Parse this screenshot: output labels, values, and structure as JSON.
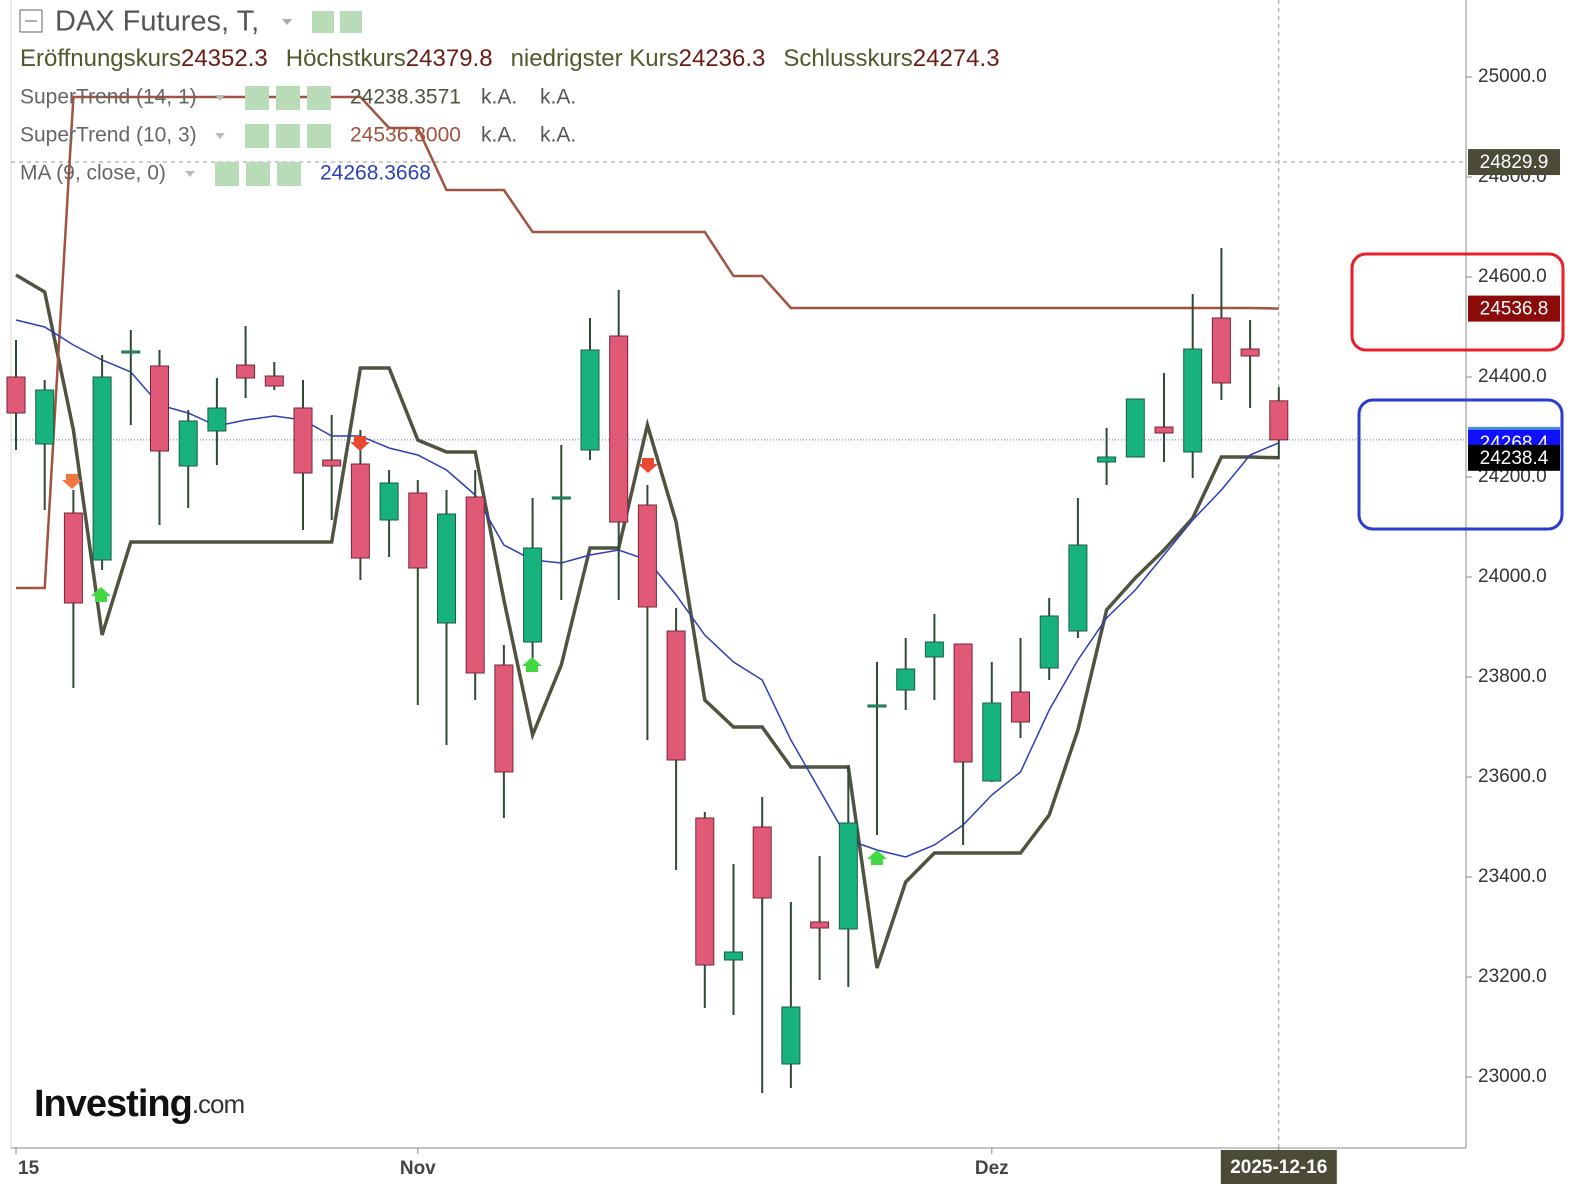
{
  "chart_data": {
    "type": "candlestick",
    "title": "DAX Futures, T,",
    "ohlc_header": [
      {
        "label": "Eröffnungskurs",
        "value": 24352.3
      },
      {
        "label": "Höchstkurs",
        "value": 24379.8
      },
      {
        "label": "niedrigster Kurs",
        "value": 24236.3
      },
      {
        "label": "Schlusskurs",
        "value": 24274.3
      }
    ],
    "categories": [
      "15",
      null,
      null,
      null,
      null,
      null,
      null,
      null,
      null,
      null,
      null,
      null,
      null,
      null,
      "Nov",
      null,
      null,
      null,
      null,
      null,
      null,
      null,
      null,
      null,
      null,
      null,
      null,
      null,
      null,
      null,
      null,
      null,
      null,
      null,
      "Dez",
      null,
      null,
      null,
      null,
      null,
      null,
      null,
      null,
      null,
      "2025-12-16"
    ],
    "open": [
      24400,
      24266,
      24128,
      24034,
      24448,
      24422,
      24222,
      24292,
      24424,
      24402,
      24338,
      24234,
      24226,
      24114,
      24168,
      23908,
      24160,
      23824,
      23870,
      24156,
      24254,
      24482,
      24144,
      23892,
      23518,
      23234,
      23500,
      23026,
      23310,
      23296,
      23740,
      23774,
      23840,
      23866,
      23592,
      23770,
      23818,
      23892,
      24230,
      24240,
      24300,
      24250,
      24518,
      24456,
      24352.3
    ],
    "high": [
      24474,
      24394,
      24174,
      24444,
      24494,
      24454,
      24334,
      24398,
      24502,
      24430,
      24394,
      24324,
      24294,
      24214,
      24194,
      24174,
      24214,
      23864,
      24158,
      24264,
      24518,
      24574,
      24184,
      23938,
      23530,
      23426,
      23560,
      23350,
      23442,
      23624,
      23830,
      23878,
      23926,
      23866,
      23830,
      23878,
      23958,
      24158,
      24298,
      24356,
      24408,
      24566,
      24658,
      24514,
      24379.8
    ],
    "low": [
      24254,
      24134,
      23778,
      24014,
      24304,
      24104,
      24138,
      24224,
      24358,
      24374,
      24094,
      24114,
      23994,
      24040,
      23744,
      23664,
      23754,
      23518,
      23834,
      23954,
      24234,
      23954,
      23674,
      23414,
      23138,
      23124,
      22968,
      22978,
      23194,
      23180,
      23484,
      23734,
      23754,
      23464,
      23590,
      23678,
      23794,
      23878,
      24184,
      24240,
      24230,
      24198,
      24354,
      24338,
      24236.3
    ],
    "close": [
      24328,
      24374,
      23948,
      24400,
      24452,
      24252,
      24312,
      24338,
      24398,
      24382,
      24208,
      24222,
      24038,
      24188,
      24018,
      24126,
      23808,
      23610,
      24058,
      24160,
      24454,
      24110,
      23940,
      23634,
      23224,
      23250,
      23358,
      23140,
      23298,
      23508,
      23744,
      23816,
      23870,
      23630,
      23748,
      23710,
      23922,
      24064,
      24240,
      24356,
      24288,
      24456,
      24388,
      24442,
      24274.3
    ],
    "up_color": "#17b27d",
    "down_color": "#e05a77",
    "series": [
      {
        "name": "SuperTrend (14, 1)",
        "color": "#4f5340",
        "legend_value": "24238.3571",
        "legend_extra": [
          "k.A.",
          "k.A."
        ],
        "values": [
          24604,
          24570,
          24294,
          23884,
          24070,
          24070,
          24070,
          24070,
          24070,
          24070,
          24070,
          24070,
          24418,
          24418,
          24274,
          24250,
          24250,
          23954,
          23684,
          23824,
          24058,
          24058,
          24304,
          24110,
          23754,
          23700,
          23700,
          23620,
          23620,
          23620,
          23218,
          23390,
          23448,
          23448,
          23448,
          23448,
          23524,
          23694,
          23934,
          23998,
          24054,
          24118,
          24240,
          24240,
          24238.4
        ]
      },
      {
        "name": "SuperTrend (10, 3)",
        "color": "#a0533f",
        "legend_value": "24536.8000",
        "legend_extra": [
          "k.A.",
          "k.A."
        ],
        "values": [
          23978,
          23978,
          24960,
          24960,
          24960,
          24960,
          24960,
          24960,
          24960,
          24960,
          24960,
          24960,
          24960,
          24898,
          24898,
          24774,
          24774,
          24774,
          24690,
          24690,
          24690,
          24690,
          24690,
          24690,
          24690,
          24602,
          24602,
          24538,
          24538,
          24538,
          24538,
          24538,
          24538,
          24538,
          24538,
          24538,
          24538,
          24538,
          24538,
          24538,
          24538,
          24538,
          24538,
          24538,
          24536.8
        ]
      },
      {
        "name": "MA (9, close, 0)",
        "color": "#2b3fb8",
        "legend_value": "24268.3668",
        "values": [
          24514,
          24500,
          24464,
          24434,
          24410,
          24344,
          24328,
          24302,
          24314,
          24322,
          24314,
          24282,
          24282,
          24258,
          24244,
          24214,
          24164,
          24064,
          24034,
          24028,
          24044,
          24054,
          24034,
          23964,
          23884,
          23830,
          23794,
          23674,
          23574,
          23474,
          23454,
          23440,
          23464,
          23504,
          23564,
          23610,
          23734,
          23834,
          23918,
          23974,
          24044,
          24114,
          24174,
          24244,
          24268.4
        ]
      }
    ],
    "ylim": [
      22858,
      25154
    ],
    "yticks": [
      {
        "value": 23000,
        "label": "23000.0"
      },
      {
        "value": 23200,
        "label": "23200.0"
      },
      {
        "value": 23400,
        "label": "23400.0"
      },
      {
        "value": 23600,
        "label": "23600.0"
      },
      {
        "value": 23800,
        "label": "23800.0"
      },
      {
        "value": 24000,
        "label": "24000.0"
      },
      {
        "value": 24200,
        "label": "24200.0"
      },
      {
        "value": 24400,
        "label": "24400.0"
      },
      {
        "value": 24600,
        "label": "24600.0"
      },
      {
        "value": 24800,
        "label": "24800.0"
      },
      {
        "value": 25000,
        "label": "25000.0"
      }
    ],
    "crosshair": {
      "value": 24829.9,
      "color": "#4b4b38"
    },
    "price_labels": [
      {
        "value": 24536.8,
        "color": "#8b0a0a"
      },
      {
        "value": 24274.3,
        "color": "#4a90d9"
      },
      {
        "value": 24268.4,
        "color": "#1010ff"
      },
      {
        "value": 24238.4,
        "color": "#000000"
      }
    ],
    "logo": {
      "brand": "Investing",
      "suffix": ".com"
    }
  }
}
